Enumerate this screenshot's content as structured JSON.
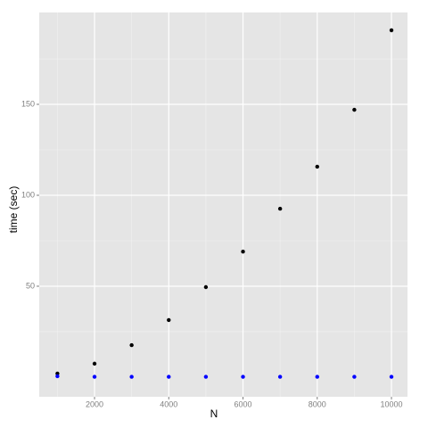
{
  "chart_data": {
    "type": "scatter",
    "x_label": "N",
    "y_label": "time (sec)",
    "x": [
      1000,
      2000,
      3000,
      4000,
      5000,
      6000,
      7000,
      8000,
      9000,
      10000
    ],
    "series": [
      {
        "color": "#000000",
        "values": [
          2,
          7.4,
          17.6,
          31.4,
          49.5,
          69,
          92.6,
          115.7,
          147,
          190.7
        ]
      },
      {
        "color": "#0000ff",
        "values": [
          0.5,
          0.2,
          0.2,
          0.2,
          0.2,
          0.2,
          0.2,
          0.2,
          0.2,
          0.2
        ]
      }
    ],
    "xlim": [
      510,
      10432
    ],
    "xticks": [
      2000,
      4000,
      6000,
      8000,
      10000
    ],
    "ylim": [
      -10.8,
      200.5
    ],
    "yticks": [
      50,
      100,
      150
    ],
    "grid": true
  }
}
